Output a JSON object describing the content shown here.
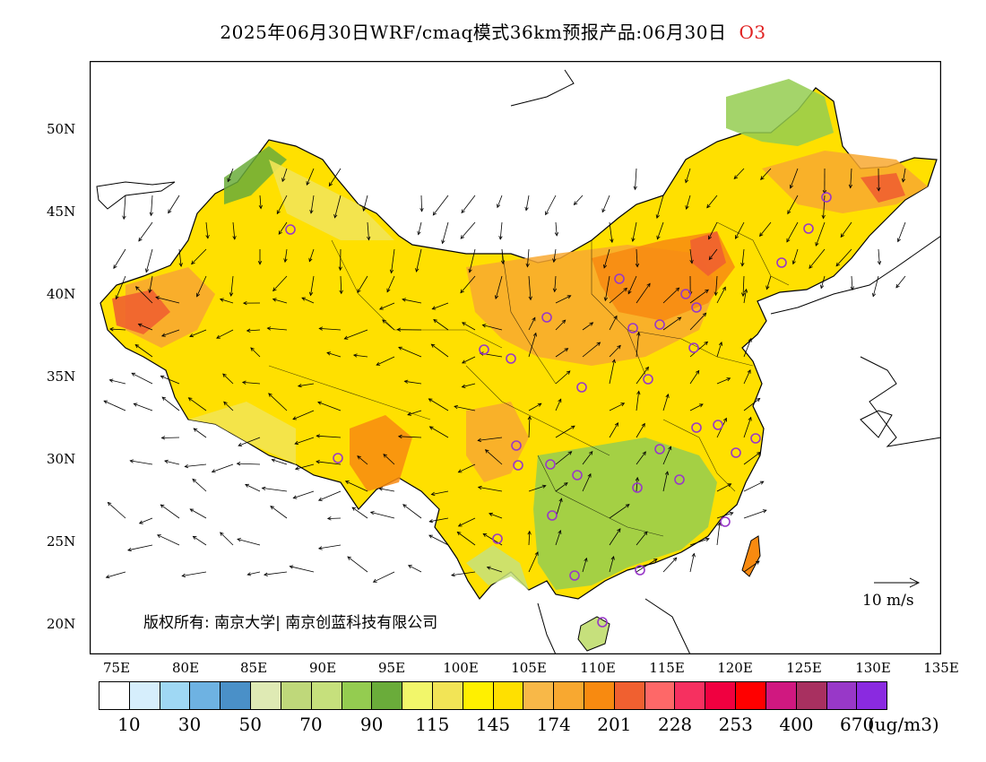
{
  "header": {
    "title": "2025年06月30日WRF/cmaq模式36km预报产品:06月30日",
    "species": "O3"
  },
  "axes": {
    "lat_labels": [
      "50N",
      "45N",
      "40N",
      "35N",
      "30N",
      "25N",
      "20N"
    ],
    "lon_labels": [
      "75E",
      "80E",
      "85E",
      "90E",
      "95E",
      "100E",
      "105E",
      "110E",
      "115E",
      "120E",
      "125E",
      "130E",
      "135E"
    ],
    "lon_range": [
      73,
      135
    ],
    "lat_range": [
      18,
      54
    ]
  },
  "legend": {
    "unit": "(ug/m3)",
    "colors": [
      "#ffffff",
      "#d6eefc",
      "#9fd8f4",
      "#6eb2e2",
      "#4a90c8",
      "#dfeab4",
      "#bfd87a",
      "#c6e07c",
      "#94cc50",
      "#6aac3a",
      "#f2f66a",
      "#f2e456",
      "#fff000",
      "#ffe000",
      "#f8b848",
      "#f8a830",
      "#f88a10",
      "#f06030",
      "#fe6868",
      "#f63060",
      "#f00040",
      "#ff0000",
      "#d01880",
      "#a83060",
      "#9838c8",
      "#8a2ae0"
    ],
    "labels": [
      "10",
      "30",
      "50",
      "70",
      "90",
      "115",
      "145",
      "174",
      "201",
      "228",
      "253",
      "400",
      "670"
    ]
  },
  "annotations": {
    "copyright": "版权所有: 南京大学| 南京创蓝科技有限公司",
    "wind_reference": "10 m/s"
  }
}
